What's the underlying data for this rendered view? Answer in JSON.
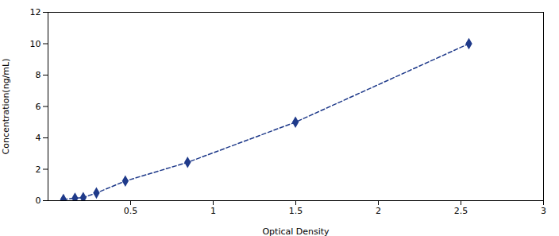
{
  "chart_data": {
    "type": "line",
    "xlabel": "Optical Density",
    "ylabel": "Concentration(ng/mL)",
    "x": [
      0.093,
      0.163,
      0.213,
      0.293,
      0.468,
      0.845,
      1.498,
      2.548
    ],
    "values": [
      0.078,
      0.156,
      0.195,
      0.488,
      1.25,
      2.44,
      5.0,
      10.0
    ],
    "color": "#1F3A8A",
    "marker": "diamond",
    "line_style": "dashed",
    "xlim": [
      0,
      3
    ],
    "ylim": [
      0,
      12
    ],
    "xticks": [
      0.5,
      1,
      1.5,
      2,
      2.5,
      3
    ],
    "yticks": [
      0,
      2,
      4,
      6,
      8,
      10,
      12
    ],
    "grid": false
  }
}
